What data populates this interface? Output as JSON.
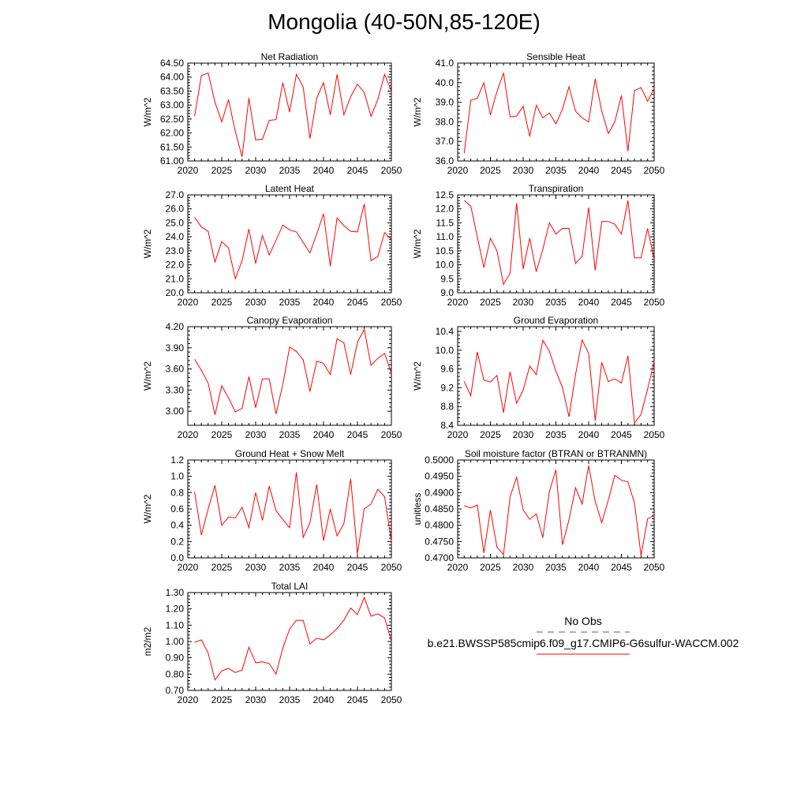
{
  "title": "Mongolia (40-50N,85-120E)",
  "colors": {
    "model": "#ff0000",
    "obs": "#5a5a9a",
    "axis": "#000000"
  },
  "legend": {
    "obs_label": "No Obs",
    "model_label": "b.e21.BWSSP585cmip6.f09_g17.CMIP6-G6sulfur-WACCM.002"
  },
  "chart_data": [
    {
      "type": "line",
      "title": "Net Radiation",
      "ylabel": "W/m^2",
      "xlim": [
        2020,
        2050
      ],
      "ylim": [
        61.0,
        64.5
      ],
      "xticks": [
        "2020",
        "2025",
        "2030",
        "2035",
        "2040",
        "2045",
        "2050"
      ],
      "yticks": [
        "61.00",
        "61.50",
        "62.00",
        "62.50",
        "63.00",
        "63.50",
        "64.00",
        "64.50"
      ],
      "x": [
        2021,
        2022,
        2023,
        2024,
        2025,
        2026,
        2027,
        2028,
        2029,
        2030,
        2031,
        2032,
        2033,
        2034,
        2035,
        2036,
        2037,
        2038,
        2039,
        2040,
        2041,
        2042,
        2043,
        2044,
        2045,
        2046,
        2047,
        2048,
        2049,
        2050
      ],
      "values": [
        62.6,
        64.05,
        64.15,
        63.1,
        62.4,
        63.2,
        62.05,
        61.15,
        63.25,
        61.75,
        61.78,
        62.45,
        62.48,
        63.8,
        62.75,
        64.1,
        63.65,
        61.8,
        63.25,
        63.8,
        62.65,
        64.1,
        62.65,
        63.3,
        63.75,
        63.45,
        62.6,
        63.2,
        64.1,
        63.5
      ]
    },
    {
      "type": "line",
      "title": "Sensible Heat",
      "ylabel": "W/m^2",
      "xlim": [
        2020,
        2050
      ],
      "ylim": [
        36.0,
        41.0
      ],
      "xticks": [
        "2020",
        "2025",
        "2030",
        "2035",
        "2040",
        "2045",
        "2050"
      ],
      "yticks": [
        "36.0",
        "37.0",
        "38.0",
        "39.0",
        "40.0",
        "41.0"
      ],
      "x": [
        2021,
        2022,
        2023,
        2024,
        2025,
        2026,
        2027,
        2028,
        2029,
        2030,
        2031,
        2032,
        2033,
        2034,
        2035,
        2036,
        2037,
        2038,
        2039,
        2040,
        2041,
        2042,
        2043,
        2044,
        2045,
        2046,
        2047,
        2048,
        2049,
        2050
      ],
      "values": [
        36.4,
        39.1,
        39.2,
        40.0,
        38.35,
        39.55,
        40.5,
        38.25,
        38.3,
        38.8,
        37.25,
        38.85,
        38.2,
        38.45,
        37.9,
        38.65,
        39.8,
        38.55,
        38.2,
        38.0,
        40.2,
        38.55,
        37.4,
        38.0,
        39.35,
        36.5,
        39.6,
        39.75,
        39.05,
        39.7
      ]
    },
    {
      "type": "line",
      "title": "Latent Heat",
      "ylabel": "W/m^2",
      "xlim": [
        2020,
        2050
      ],
      "ylim": [
        20.0,
        27.0
      ],
      "xticks": [
        "2020",
        "2025",
        "2030",
        "2035",
        "2040",
        "2045",
        "2050"
      ],
      "yticks": [
        "20.0",
        "21.0",
        "22.0",
        "23.0",
        "24.0",
        "25.0",
        "26.0",
        "27.0"
      ],
      "x": [
        2021,
        2022,
        2023,
        2024,
        2025,
        2026,
        2027,
        2028,
        2029,
        2030,
        2031,
        2032,
        2033,
        2034,
        2035,
        2036,
        2037,
        2038,
        2039,
        2040,
        2041,
        2042,
        2043,
        2044,
        2045,
        2046,
        2047,
        2048,
        2049,
        2050
      ],
      "values": [
        25.4,
        24.7,
        24.4,
        22.2,
        23.65,
        23.2,
        21.0,
        22.3,
        24.55,
        22.1,
        24.1,
        22.7,
        23.75,
        24.85,
        24.5,
        24.35,
        23.6,
        22.85,
        24.2,
        25.65,
        21.9,
        25.35,
        24.8,
        24.4,
        24.35,
        26.35,
        22.3,
        22.6,
        24.3,
        23.8
      ]
    },
    {
      "type": "line",
      "title": "Transpiration",
      "ylabel": "W/m^2",
      "xlim": [
        2020,
        2050
      ],
      "ylim": [
        9.0,
        12.5
      ],
      "xticks": [
        "2020",
        "2025",
        "2030",
        "2035",
        "2040",
        "2045",
        "2050"
      ],
      "yticks": [
        "9.0",
        "9.5",
        "10.0",
        "10.5",
        "11.0",
        "11.5",
        "12.0",
        "12.5"
      ],
      "x": [
        2021,
        2022,
        2023,
        2024,
        2025,
        2026,
        2027,
        2028,
        2029,
        2030,
        2031,
        2032,
        2033,
        2034,
        2035,
        2036,
        2037,
        2038,
        2039,
        2040,
        2041,
        2042,
        2043,
        2044,
        2045,
        2046,
        2047,
        2048,
        2049,
        2050
      ],
      "values": [
        12.3,
        12.1,
        11.0,
        9.9,
        10.95,
        10.5,
        9.3,
        9.7,
        12.2,
        9.85,
        10.95,
        9.75,
        10.55,
        11.5,
        11.1,
        11.3,
        11.3,
        10.05,
        10.3,
        12.05,
        9.8,
        11.55,
        11.55,
        11.45,
        11.1,
        12.3,
        10.25,
        10.25,
        11.3,
        10.2
      ]
    },
    {
      "type": "line",
      "title": "Canopy Evaporation",
      "ylabel": "W/m^2",
      "xlim": [
        2020,
        2050
      ],
      "ylim": [
        2.8,
        4.2
      ],
      "xticks": [
        "2020",
        "2025",
        "2030",
        "2035",
        "2040",
        "2045",
        "2050"
      ],
      "yticks": [
        "3.00",
        "3.30",
        "3.60",
        "3.90",
        "4.20"
      ],
      "ytick_values": [
        3.0,
        3.3,
        3.6,
        3.9,
        4.2
      ],
      "x": [
        2021,
        2022,
        2023,
        2024,
        2025,
        2026,
        2027,
        2028,
        2029,
        2030,
        2031,
        2032,
        2033,
        2034,
        2035,
        2036,
        2037,
        2038,
        2039,
        2040,
        2041,
        2042,
        2043,
        2044,
        2045,
        2046,
        2047,
        2048,
        2049,
        2050
      ],
      "values": [
        3.74,
        3.58,
        3.4,
        2.95,
        3.36,
        3.19,
        2.99,
        3.04,
        3.49,
        3.05,
        3.46,
        3.46,
        2.96,
        3.38,
        3.91,
        3.85,
        3.73,
        3.28,
        3.71,
        3.68,
        3.52,
        4.03,
        3.97,
        3.52,
        3.98,
        4.16,
        3.65,
        3.75,
        3.82,
        3.54
      ]
    },
    {
      "type": "line",
      "title": "Ground Evaporation",
      "ylabel": "W/m^2",
      "xlim": [
        2020,
        2050
      ],
      "ylim": [
        8.4,
        10.5
      ],
      "xticks": [
        "2020",
        "2025",
        "2030",
        "2035",
        "2040",
        "2045",
        "2050"
      ],
      "yticks": [
        "8.4",
        "8.8",
        "9.2",
        "9.6",
        "10.0",
        "10.4"
      ],
      "ytick_values": [
        8.4,
        8.8,
        9.2,
        9.6,
        10.0,
        10.4
      ],
      "x": [
        2021,
        2022,
        2023,
        2024,
        2025,
        2026,
        2027,
        2028,
        2029,
        2030,
        2031,
        2032,
        2033,
        2034,
        2035,
        2036,
        2037,
        2038,
        2039,
        2040,
        2041,
        2042,
        2043,
        2044,
        2045,
        2046,
        2047,
        2048,
        2049,
        2050
      ],
      "values": [
        9.33,
        9.03,
        9.96,
        9.36,
        9.32,
        9.46,
        8.67,
        9.54,
        8.87,
        9.15,
        9.66,
        9.48,
        10.21,
        9.98,
        9.55,
        9.21,
        8.58,
        9.48,
        10.22,
        9.93,
        8.5,
        9.74,
        9.33,
        9.39,
        9.3,
        9.88,
        8.45,
        8.63,
        9.17,
        9.75
      ]
    },
    {
      "type": "line",
      "title": "Ground Heat + Snow Melt",
      "ylabel": "W/m^2",
      "xlim": [
        2020,
        2050
      ],
      "ylim": [
        0.0,
        1.2
      ],
      "xticks": [
        "2020",
        "2025",
        "2030",
        "2035",
        "2040",
        "2045",
        "2050"
      ],
      "yticks": [
        "0.0",
        "0.2",
        "0.4",
        "0.6",
        "0.8",
        "1.0",
        "1.2"
      ],
      "x": [
        2021,
        2022,
        2023,
        2024,
        2025,
        2026,
        2027,
        2028,
        2029,
        2030,
        2031,
        2032,
        2033,
        2034,
        2035,
        2036,
        2037,
        2038,
        2039,
        2040,
        2041,
        2042,
        2043,
        2044,
        2045,
        2046,
        2047,
        2048,
        2049,
        2050
      ],
      "values": [
        0.81,
        0.28,
        0.6,
        0.89,
        0.4,
        0.5,
        0.49,
        0.62,
        0.37,
        0.8,
        0.46,
        0.88,
        0.58,
        0.47,
        0.37,
        1.05,
        0.25,
        0.43,
        0.9,
        0.21,
        0.6,
        0.27,
        0.42,
        0.97,
        0.05,
        0.6,
        0.66,
        0.84,
        0.75,
        0.2
      ]
    },
    {
      "type": "line",
      "title": "Soil moisture factor (BTRAN or BTRANMN)",
      "ylabel": "unitless",
      "xlim": [
        2020,
        2050
      ],
      "ylim": [
        0.47,
        0.5
      ],
      "xticks": [
        "2020",
        "2025",
        "2030",
        "2035",
        "2040",
        "2045",
        "2050"
      ],
      "yticks": [
        "0.4700",
        "0.4750",
        "0.4800",
        "0.4850",
        "0.4900",
        "0.4950",
        "0.5000"
      ],
      "x": [
        2021,
        2022,
        2023,
        2024,
        2025,
        2026,
        2027,
        2028,
        2029,
        2030,
        2031,
        2032,
        2033,
        2034,
        2035,
        2036,
        2037,
        2038,
        2039,
        2040,
        2041,
        2042,
        2043,
        2044,
        2045,
        2046,
        2047,
        2048,
        2049,
        2050
      ],
      "values": [
        0.486,
        0.4853,
        0.4862,
        0.4715,
        0.4847,
        0.4733,
        0.471,
        0.4887,
        0.4947,
        0.4847,
        0.4818,
        0.4835,
        0.4762,
        0.4903,
        0.497,
        0.474,
        0.4817,
        0.4915,
        0.4865,
        0.4983,
        0.4873,
        0.4808,
        0.4877,
        0.4953,
        0.4938,
        0.4933,
        0.4868,
        0.4707,
        0.482,
        0.483
      ]
    },
    {
      "type": "line",
      "title": "Total LAI",
      "ylabel": "m2/m2",
      "xlim": [
        2020,
        2050
      ],
      "ylim": [
        0.7,
        1.3
      ],
      "xticks": [
        "2020",
        "2025",
        "2030",
        "2035",
        "2040",
        "2045",
        "2050"
      ],
      "yticks": [
        "0.70",
        "0.80",
        "0.90",
        "1.00",
        "1.10",
        "1.20",
        "1.30"
      ],
      "x": [
        2021,
        2022,
        2023,
        2024,
        2025,
        2026,
        2027,
        2028,
        2029,
        2030,
        2031,
        2032,
        2033,
        2034,
        2035,
        2036,
        2037,
        2038,
        2039,
        2040,
        2041,
        2042,
        2043,
        2044,
        2045,
        2046,
        2047,
        2048,
        2049,
        2050
      ],
      "values": [
        0.995,
        1.01,
        0.93,
        0.765,
        0.82,
        0.835,
        0.81,
        0.825,
        0.965,
        0.87,
        0.875,
        0.865,
        0.8,
        0.96,
        1.075,
        1.13,
        1.13,
        0.985,
        1.02,
        1.01,
        1.04,
        1.08,
        1.13,
        1.205,
        1.165,
        1.27,
        1.155,
        1.17,
        1.145,
        1.0
      ]
    }
  ]
}
